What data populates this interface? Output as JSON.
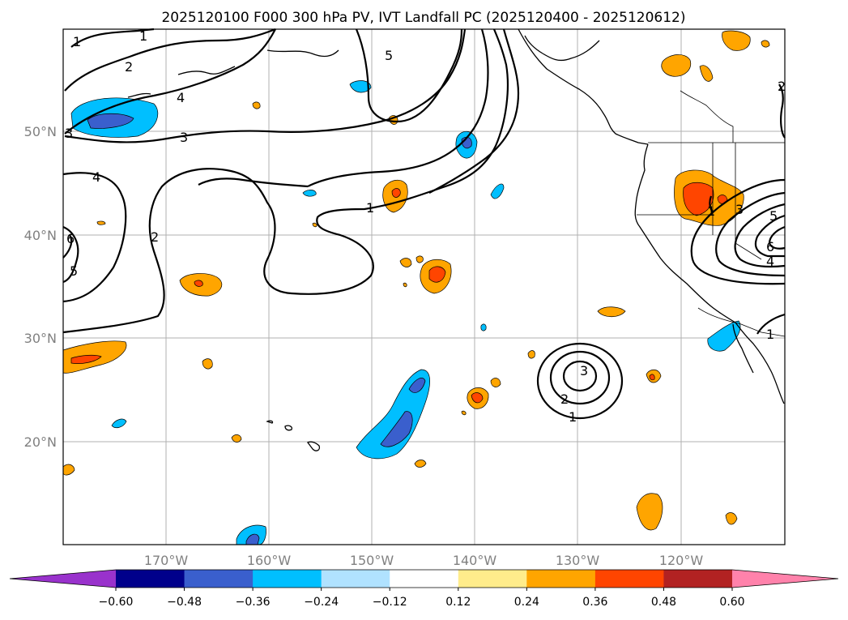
{
  "title": "2025120100 F000 300 hPa PV, IVT Landfall PC (2025120400 - 2025120612)",
  "axes": {
    "lat_ticks": [
      "50°N",
      "40°N",
      "30°N",
      "20°N"
    ],
    "lon_ticks": [
      "170°W",
      "160°W",
      "150°W",
      "140°W",
      "130°W",
      "120°W"
    ]
  },
  "contour_labels": [
    "1",
    "1",
    "2",
    "4",
    "5",
    "3",
    "3",
    "4",
    "6",
    "5",
    "2",
    "1",
    "1",
    "2",
    "3",
    "1",
    "6",
    "5",
    "3",
    "4",
    "2"
  ],
  "colorbar": {
    "ticks": [
      "−0.60",
      "−0.48",
      "−0.36",
      "−0.24",
      "−0.12",
      "0.12",
      "0.24",
      "0.36",
      "0.48",
      "0.60"
    ],
    "colors": [
      "#9932cc",
      "#00008b",
      "#3a5fcd",
      "#00bfff",
      "#b0e2ff",
      "#ffffff",
      "#ffec8b",
      "#ffa500",
      "#ff4500",
      "#b22222",
      "#ff82ab"
    ]
  }
}
